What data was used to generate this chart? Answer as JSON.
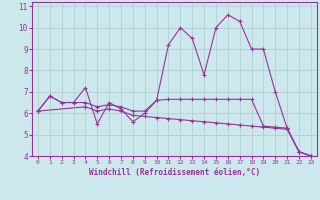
{
  "title": "",
  "xlabel": "Windchill (Refroidissement éolien,°C)",
  "ylabel": "",
  "xlim": [
    -0.5,
    23.5
  ],
  "ylim": [
    4,
    11.2
  ],
  "yticks": [
    4,
    5,
    6,
    7,
    8,
    9,
    10,
    11
  ],
  "xticks": [
    0,
    1,
    2,
    3,
    4,
    5,
    6,
    7,
    8,
    9,
    10,
    11,
    12,
    13,
    14,
    15,
    16,
    17,
    18,
    19,
    20,
    21,
    22,
    23
  ],
  "bg_color": "#cce8ec",
  "line_color": "#993399",
  "grid_color": "#aacccc",
  "series1_x": [
    0,
    1,
    2,
    3,
    4,
    5,
    6,
    7,
    8,
    9,
    10,
    11,
    12,
    13,
    14,
    15,
    16,
    17,
    18,
    19,
    20,
    21,
    22,
    23
  ],
  "series1_y": [
    6.1,
    6.8,
    6.5,
    6.5,
    7.2,
    5.5,
    6.5,
    6.2,
    5.6,
    6.0,
    6.6,
    9.2,
    10.0,
    9.5,
    7.8,
    10.0,
    10.6,
    10.3,
    9.0,
    9.0,
    7.0,
    5.3,
    4.2,
    4.0
  ],
  "series2_x": [
    0,
    1,
    2,
    3,
    4,
    5,
    6,
    7,
    8,
    9,
    10,
    11,
    12,
    13,
    14,
    15,
    16,
    17,
    18,
    19,
    20,
    21,
    22,
    23
  ],
  "series2_y": [
    6.1,
    6.8,
    6.5,
    6.5,
    6.5,
    6.3,
    6.4,
    6.3,
    6.1,
    6.1,
    6.6,
    6.65,
    6.65,
    6.65,
    6.65,
    6.65,
    6.65,
    6.65,
    6.65,
    5.4,
    5.35,
    5.3,
    4.2,
    4.0
  ],
  "series3_x": [
    0,
    4,
    5,
    6,
    7,
    8,
    9,
    10,
    11,
    12,
    13,
    14,
    15,
    16,
    17,
    18,
    19,
    20,
    21,
    22,
    23
  ],
  "series3_y": [
    6.1,
    6.3,
    6.1,
    6.2,
    6.1,
    5.9,
    5.85,
    5.8,
    5.75,
    5.7,
    5.65,
    5.6,
    5.55,
    5.5,
    5.45,
    5.4,
    5.35,
    5.3,
    5.25,
    4.2,
    4.0
  ]
}
